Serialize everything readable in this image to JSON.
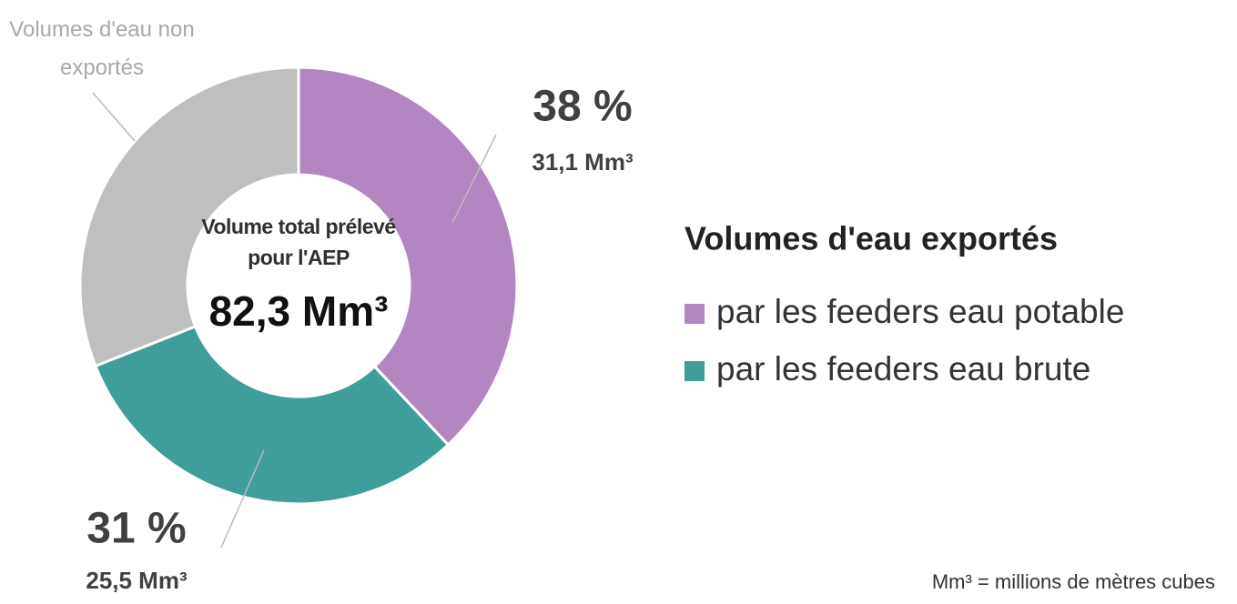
{
  "chart_data": {
    "type": "donut",
    "slices": [
      {
        "name": "par les feeders eau potable",
        "color": "#b286c0",
        "value": 38,
        "value_label": "38 %",
        "volume": 31.1,
        "volume_label": "31,1 Mm³"
      },
      {
        "name": "par les feeders eau brute",
        "color": "#3f9e99",
        "value": 31,
        "value_label": "31 %",
        "volume": 25.5,
        "volume_label": "25,5 Mm³"
      },
      {
        "name": "Volumes d'eau non exportés",
        "color": "#c0bfc0",
        "value": 31
      }
    ],
    "center_title": "Volume total prélevé pour l'AEP",
    "total": 82.3,
    "total_label": "82,3 Mm³",
    "legend_title": "Volumes d'eau exportés",
    "footnote": "Mm³ = millions de mètres cubes"
  }
}
